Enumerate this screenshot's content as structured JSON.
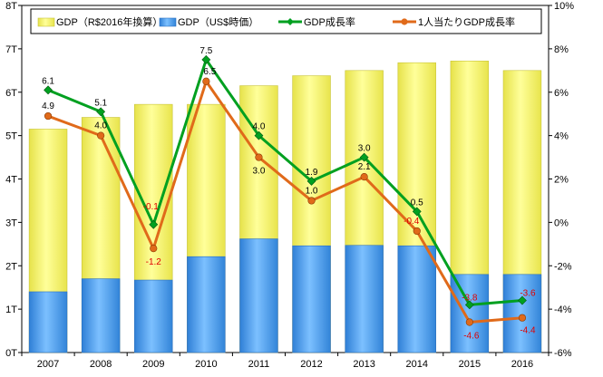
{
  "chart_data": {
    "type": "bar",
    "categories": [
      "2007",
      "2008",
      "2009",
      "2010",
      "2011",
      "2012",
      "2013",
      "2014",
      "2015",
      "2016"
    ],
    "left_axis": {
      "ylim": [
        0,
        8
      ],
      "ticks": [
        0,
        1,
        2,
        3,
        4,
        5,
        6,
        7,
        8
      ],
      "tick_labels": [
        "0T",
        "1T",
        "2T",
        "3T",
        "4T",
        "5T",
        "6T",
        "7T",
        "8T"
      ]
    },
    "right_axis": {
      "ylim": [
        -6,
        10
      ],
      "ticks": [
        -6,
        -4,
        -2,
        0,
        2,
        4,
        6,
        8,
        10
      ],
      "tick_labels": [
        "-6%",
        "-4%",
        "-2%",
        "0%",
        "2%",
        "4%",
        "6%",
        "8%",
        "10%"
      ]
    },
    "grid": false,
    "legend_position": "top",
    "series": [
      {
        "name": "GDP（R$2016年換算）",
        "type": "bar",
        "axis": "left",
        "color": "#f2f060",
        "values": [
          5.15,
          5.42,
          5.72,
          5.72,
          6.15,
          6.38,
          6.5,
          6.68,
          6.72,
          6.5
        ]
      },
      {
        "name": "GDP（US$時価）",
        "type": "bar",
        "axis": "left",
        "color": "#4d9ee8",
        "values": [
          1.4,
          1.7,
          1.67,
          2.21,
          2.62,
          2.46,
          2.47,
          2.46,
          1.8,
          1.8
        ]
      },
      {
        "name": "GDP成長率",
        "type": "line",
        "axis": "right",
        "color": "#00a020",
        "values": [
          6.1,
          5.1,
          -0.1,
          7.5,
          4.0,
          1.9,
          3.0,
          0.5,
          -3.8,
          -3.6
        ],
        "labels": [
          "6.1",
          "5.1",
          "-0.1",
          "7.5",
          "4.0",
          "1.9",
          "3.0",
          "0.5",
          "-3.8",
          "-3.6"
        ]
      },
      {
        "name": "1人当たりGDP成長率",
        "type": "line",
        "axis": "right",
        "color": "#e06a1a",
        "values": [
          4.9,
          4.0,
          -1.2,
          6.5,
          3.0,
          1.0,
          2.1,
          -0.4,
          -4.6,
          -4.4
        ],
        "labels": [
          "4.9",
          "4.0",
          "-1.2",
          "6.5",
          "3.0",
          "1.0",
          "2.1",
          "-0.4",
          "-4.6",
          "-4.4"
        ]
      }
    ]
  }
}
